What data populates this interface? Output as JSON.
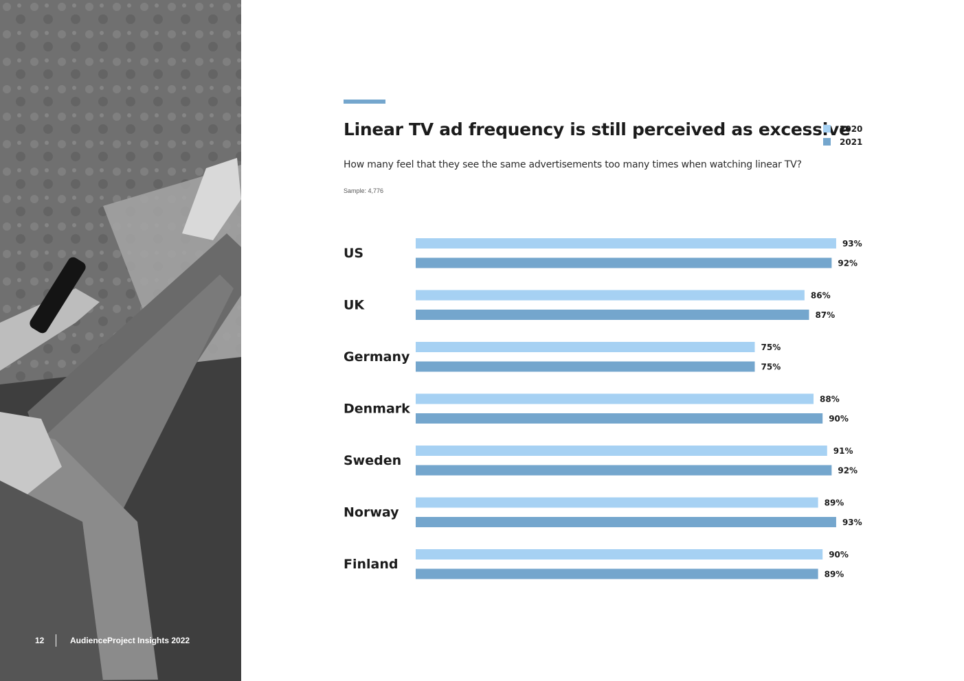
{
  "header": {
    "title": "Linear TV ad frequency is still perceived as excessive",
    "subtitle": "How many feel that they see the same advertisements too many times when watching linear TV?",
    "sample": "Sample: 4,776"
  },
  "footer": {
    "page_number": "12",
    "publication": "AudienceProject Insights 2022"
  },
  "colors": {
    "accent": "#74a6cd",
    "series_2020": "#a6d1f3",
    "series_2021": "#74a6cd"
  },
  "chart_data": {
    "type": "bar",
    "orientation": "horizontal",
    "categories": [
      "US",
      "UK",
      "Germany",
      "Denmark",
      "Sweden",
      "Norway",
      "Finland"
    ],
    "series": [
      {
        "name": "2020",
        "values": [
          93,
          86,
          75,
          88,
          91,
          89,
          90
        ],
        "color": "#a6d1f3"
      },
      {
        "name": "2021",
        "values": [
          92,
          87,
          75,
          90,
          92,
          93,
          89
        ],
        "color": "#74a6cd"
      }
    ],
    "value_labels": [
      [
        "93%",
        "86%",
        "75%",
        "88%",
        "91%",
        "89%",
        "90%"
      ],
      [
        "92%",
        "87%",
        "75%",
        "90%",
        "92%",
        "93%",
        "89%"
      ]
    ],
    "xlim": [
      0,
      100
    ],
    "grid": false,
    "legend_position": "top-right",
    "title": "Linear TV ad frequency is still perceived as excessive",
    "xlabel": "",
    "ylabel": ""
  }
}
